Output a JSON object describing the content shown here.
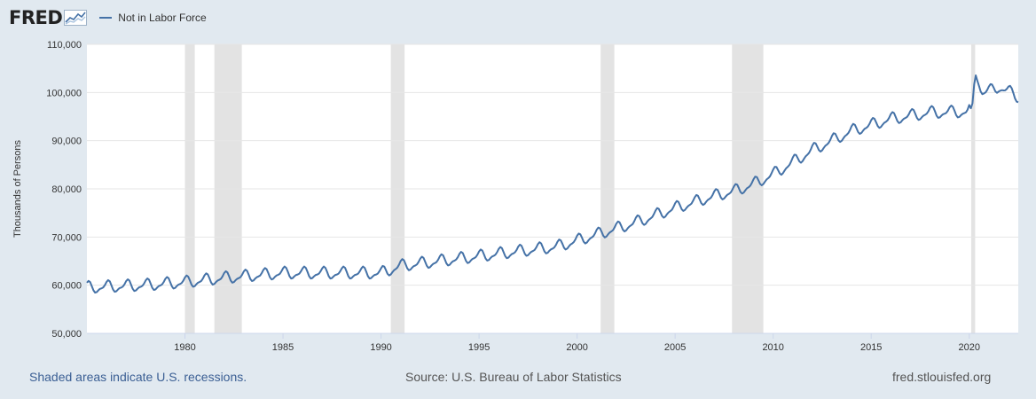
{
  "header": {
    "logo_text": "FRED",
    "legend_label": "Not in Labor Force",
    "series_color": "#4572a7"
  },
  "footer": {
    "recession_note": "Shaded areas indicate U.S. recessions.",
    "source": "Source: U.S. Bureau of Labor Statistics",
    "site": "fred.stlouisfed.org"
  },
  "chart_data": {
    "type": "line",
    "title": "",
    "xlabel": "",
    "ylabel": "Thousands of Persons",
    "xlim": [
      1975.0,
      2022.5
    ],
    "ylim": [
      50000,
      110000
    ],
    "x_ticks": [
      1980,
      1985,
      1990,
      1995,
      2000,
      2005,
      2010,
      2015,
      2020
    ],
    "y_ticks": [
      "50,000",
      "60,000",
      "70,000",
      "80,000",
      "90,000",
      "100,000",
      "110,000"
    ],
    "y_tick_values": [
      50000,
      60000,
      70000,
      80000,
      90000,
      100000,
      110000
    ],
    "grid": true,
    "recessions": [
      [
        1980.0,
        1980.5
      ],
      [
        1981.5,
        1982.9
      ],
      [
        1990.5,
        1991.2
      ],
      [
        2001.2,
        2001.9
      ],
      [
        2007.9,
        2009.5
      ],
      [
        2020.1,
        2020.3
      ]
    ],
    "series": [
      {
        "name": "Not in Labor Force",
        "trend": [
          [
            1975.0,
            59500
          ],
          [
            1978.0,
            60000
          ],
          [
            1980.0,
            60600
          ],
          [
            1982.0,
            61500
          ],
          [
            1985.0,
            62500
          ],
          [
            1988.0,
            62500
          ],
          [
            1990.0,
            62500
          ],
          [
            1991.0,
            64000
          ],
          [
            1993.0,
            65000
          ],
          [
            1995.0,
            66000
          ],
          [
            1997.0,
            67000
          ],
          [
            1999.0,
            68000
          ],
          [
            2001.0,
            70500
          ],
          [
            2003.0,
            73000
          ],
          [
            2005.0,
            76000
          ],
          [
            2007.0,
            78500
          ],
          [
            2008.0,
            79500
          ],
          [
            2009.0,
            81000
          ],
          [
            2010.0,
            83000
          ],
          [
            2012.0,
            88000
          ],
          [
            2014.0,
            92000
          ],
          [
            2016.0,
            94500
          ],
          [
            2018.0,
            95800
          ],
          [
            2019.9,
            96000
          ],
          [
            2020.15,
            97000
          ],
          [
            2020.3,
            104000
          ],
          [
            2020.6,
            100000
          ],
          [
            2021.0,
            100200
          ],
          [
            2021.5,
            101200
          ],
          [
            2022.0,
            100200
          ],
          [
            2022.5,
            99000
          ]
        ],
        "seasonal_amplitude": 1400
      }
    ]
  }
}
